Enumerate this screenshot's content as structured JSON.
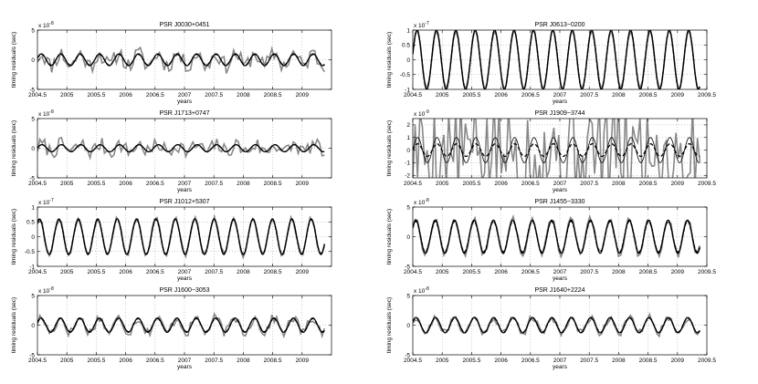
{
  "figure": {
    "ylabel": "timing residuals (sec)",
    "xlabel": "years"
  },
  "chart_data": [
    {
      "type": "line",
      "title": "PSR J0030+0451",
      "multiplier": "x 10^-8",
      "ylim": [
        -5,
        5
      ],
      "yticks": [
        {
          "v": -5,
          "l": "-5"
        },
        {
          "v": 0,
          "l": "0"
        },
        {
          "v": 5,
          "l": "5"
        }
      ],
      "xlim": [
        2004.5,
        2009.5
      ],
      "xticks": [
        "2004.5",
        "2005",
        "2005.5",
        "2006",
        "2006.5",
        "2007",
        "2007.5",
        "2008",
        "2008.5",
        "2009"
      ],
      "x_start": 2004.5,
      "x_end": 2009.38,
      "series": [
        {
          "style": "noisy",
          "amplitude": 1.0,
          "period_years": 0.33,
          "phase": 0.3,
          "noise": 2.0,
          "seed": 11
        },
        {
          "style": "solid",
          "amplitude": 1.0,
          "period_years": 0.33,
          "phase": 0.3
        },
        {
          "style": "dashed",
          "amplitude": 0.9,
          "period_years": 0.33,
          "phase": 0.3
        }
      ]
    },
    {
      "type": "line",
      "title": "PSR J0613−0200",
      "multiplier": "x 10^-7",
      "ylim": [
        -1,
        1
      ],
      "yticks": [
        {
          "v": -1,
          "l": "-1"
        },
        {
          "v": -0.5,
          "l": "-0.5"
        },
        {
          "v": 0,
          "l": "0"
        },
        {
          "v": 0.5,
          "l": "0.5"
        },
        {
          "v": 1,
          "l": "1"
        }
      ],
      "xlim": [
        2004.5,
        2009.5
      ],
      "xticks": [
        "2004.5",
        "2005",
        "2005.5",
        "2006",
        "2006.5",
        "2007",
        "2007.5",
        "2008",
        "2008.5",
        "2009",
        "2009.5"
      ],
      "x_start": 2004.5,
      "x_end": 2009.38,
      "series": [
        {
          "style": "noisy",
          "amplitude": 1.0,
          "period_years": 0.33,
          "phase": 0.2,
          "noise": 0.06,
          "seed": 3
        },
        {
          "style": "solid",
          "amplitude": 1.0,
          "period_years": 0.33,
          "phase": 0.2
        },
        {
          "style": "dashed",
          "amplitude": 1.0,
          "period_years": 0.33,
          "phase": 0.2
        }
      ]
    },
    {
      "type": "line",
      "title": "PSR J1713+0747",
      "multiplier": "x 10^-8",
      "ylim": [
        -5,
        5
      ],
      "yticks": [
        {
          "v": -5,
          "l": "-5"
        },
        {
          "v": 0,
          "l": "0"
        },
        {
          "v": 5,
          "l": "5"
        }
      ],
      "xlim": [
        2004.5,
        2009.5
      ],
      "xticks": [
        "2004.5",
        "2005",
        "2005.5",
        "2006",
        "2006.5",
        "2007",
        "2007.5",
        "2008",
        "2008.5",
        "2009"
      ],
      "x_start": 2004.5,
      "x_end": 2009.38,
      "series": [
        {
          "style": "noisy",
          "amplitude": 0.6,
          "period_years": 0.33,
          "phase": 0.1,
          "noise": 1.8,
          "seed": 7
        },
        {
          "style": "solid",
          "amplitude": 0.6,
          "period_years": 0.33,
          "phase": 0.1
        },
        {
          "style": "dashed",
          "amplitude": 0.6,
          "period_years": 0.33,
          "phase": 0.1
        }
      ]
    },
    {
      "type": "line",
      "title": "PSR J1909−3744",
      "multiplier": "x 10^-9",
      "ylim": [
        -2.2,
        2.5
      ],
      "yticks": [
        {
          "v": -2,
          "l": "-2"
        },
        {
          "v": -1,
          "l": "-1"
        },
        {
          "v": 0,
          "l": "0"
        },
        {
          "v": 1,
          "l": "1"
        },
        {
          "v": 2,
          "l": "2"
        }
      ],
      "xlim": [
        2004.5,
        2009.5
      ],
      "xticks": [
        "2004.5",
        "2005",
        "2005.5",
        "2006",
        "2006.5",
        "2007",
        "2007.5",
        "2008",
        "2008.5",
        "2009",
        "2009.5"
      ],
      "x_start": 2004.5,
      "x_end": 2009.38,
      "series": [
        {
          "style": "noisy",
          "amplitude": 0.0,
          "period_years": 0.33,
          "phase": 0.0,
          "noise": 6.0,
          "seed": 5
        },
        {
          "style": "solid",
          "amplitude": 1.0,
          "period_years": 0.33,
          "phase": 0.0
        },
        {
          "style": "dashed",
          "amplitude": 0.5,
          "period_years": 0.33,
          "phase": 0.0
        }
      ]
    },
    {
      "type": "line",
      "title": "PSR J1012+5307",
      "multiplier": "x 10^-7",
      "ylim": [
        -1,
        1
      ],
      "yticks": [
        {
          "v": -1,
          "l": "-1"
        },
        {
          "v": -0.5,
          "l": "-0.5"
        },
        {
          "v": 0,
          "l": "0"
        },
        {
          "v": 0.5,
          "l": "0.5"
        },
        {
          "v": 1,
          "l": "1"
        }
      ],
      "xlim": [
        2004.5,
        2009.5
      ],
      "xticks": [
        "2004.5",
        "2005",
        "2005.5",
        "2006",
        "2006.5",
        "2007",
        "2007.5",
        "2008",
        "2008.5",
        "2009"
      ],
      "x_start": 2004.5,
      "x_end": 2009.38,
      "series": [
        {
          "style": "noisy",
          "amplitude": 0.62,
          "period_years": 0.33,
          "phase": 0.9,
          "noise": 0.12,
          "seed": 9
        },
        {
          "style": "solid",
          "amplitude": 0.6,
          "period_years": 0.33,
          "phase": 0.9
        },
        {
          "style": "dashed",
          "amplitude": 0.58,
          "period_years": 0.33,
          "phase": 0.9
        }
      ]
    },
    {
      "type": "line",
      "title": "PSR J1455−3330",
      "multiplier": "x 10^-8",
      "ylim": [
        -5,
        5
      ],
      "yticks": [
        {
          "v": -5,
          "l": "-5"
        },
        {
          "v": 0,
          "l": "0"
        },
        {
          "v": 5,
          "l": "5"
        }
      ],
      "xlim": [
        2004.5,
        2009.5
      ],
      "xticks": [
        "2004.5",
        "2005",
        "2005.5",
        "2006",
        "2006.5",
        "2007",
        "2007.5",
        "2008",
        "2008.5",
        "2009",
        "2009.5"
      ],
      "x_start": 2004.5,
      "x_end": 2009.38,
      "series": [
        {
          "style": "noisy",
          "amplitude": 3.0,
          "period_years": 0.33,
          "phase": 0.6,
          "noise": 0.8,
          "seed": 13
        },
        {
          "style": "solid",
          "amplitude": 2.8,
          "period_years": 0.33,
          "phase": 0.6
        },
        {
          "style": "dashed",
          "amplitude": 2.6,
          "period_years": 0.33,
          "phase": 0.6
        }
      ]
    },
    {
      "type": "line",
      "title": "PSR J1600−3053",
      "multiplier": "x 10^-8",
      "ylim": [
        -5,
        5
      ],
      "yticks": [
        {
          "v": -5,
          "l": "-5"
        },
        {
          "v": 0,
          "l": "0"
        },
        {
          "v": 5,
          "l": "5"
        }
      ],
      "xlim": [
        2004.5,
        2009.5
      ],
      "xticks": [
        "2004.5",
        "2005",
        "2005.5",
        "2006",
        "2006.5",
        "2007",
        "2007.5",
        "2008",
        "2008.5",
        "2009"
      ],
      "x_start": 2004.5,
      "x_end": 2009.38,
      "series": [
        {
          "style": "noisy",
          "amplitude": 1.2,
          "period_years": 0.33,
          "phase": 0.4,
          "noise": 1.2,
          "seed": 17
        },
        {
          "style": "solid",
          "amplitude": 1.2,
          "period_years": 0.33,
          "phase": 0.4
        },
        {
          "style": "dashed",
          "amplitude": 1.1,
          "period_years": 0.33,
          "phase": 0.4
        }
      ]
    },
    {
      "type": "line",
      "title": "PSR J1640+2224",
      "multiplier": "x 10^-8",
      "ylim": [
        -5,
        5
      ],
      "yticks": [
        {
          "v": -5,
          "l": "-5"
        },
        {
          "v": 0,
          "l": "0"
        },
        {
          "v": 5,
          "l": "5"
        }
      ],
      "xlim": [
        2004.5,
        2009.5
      ],
      "xticks": [
        "2004.5",
        "2005",
        "2005.5",
        "2006",
        "2006.5",
        "2007",
        "2007.5",
        "2008",
        "2008.5",
        "2009",
        "2009.5"
      ],
      "x_start": 2004.5,
      "x_end": 2009.38,
      "series": [
        {
          "style": "noisy",
          "amplitude": 1.3,
          "period_years": 0.33,
          "phase": 0.5,
          "noise": 0.9,
          "seed": 21
        },
        {
          "style": "solid",
          "amplitude": 1.3,
          "period_years": 0.33,
          "phase": 0.5
        },
        {
          "style": "dashed",
          "amplitude": 1.2,
          "period_years": 0.33,
          "phase": 0.5
        }
      ]
    }
  ],
  "colors": {
    "noisy": "#888888",
    "solid": "#000000",
    "dashed": "#000000",
    "grid": "#9a9a9a"
  }
}
